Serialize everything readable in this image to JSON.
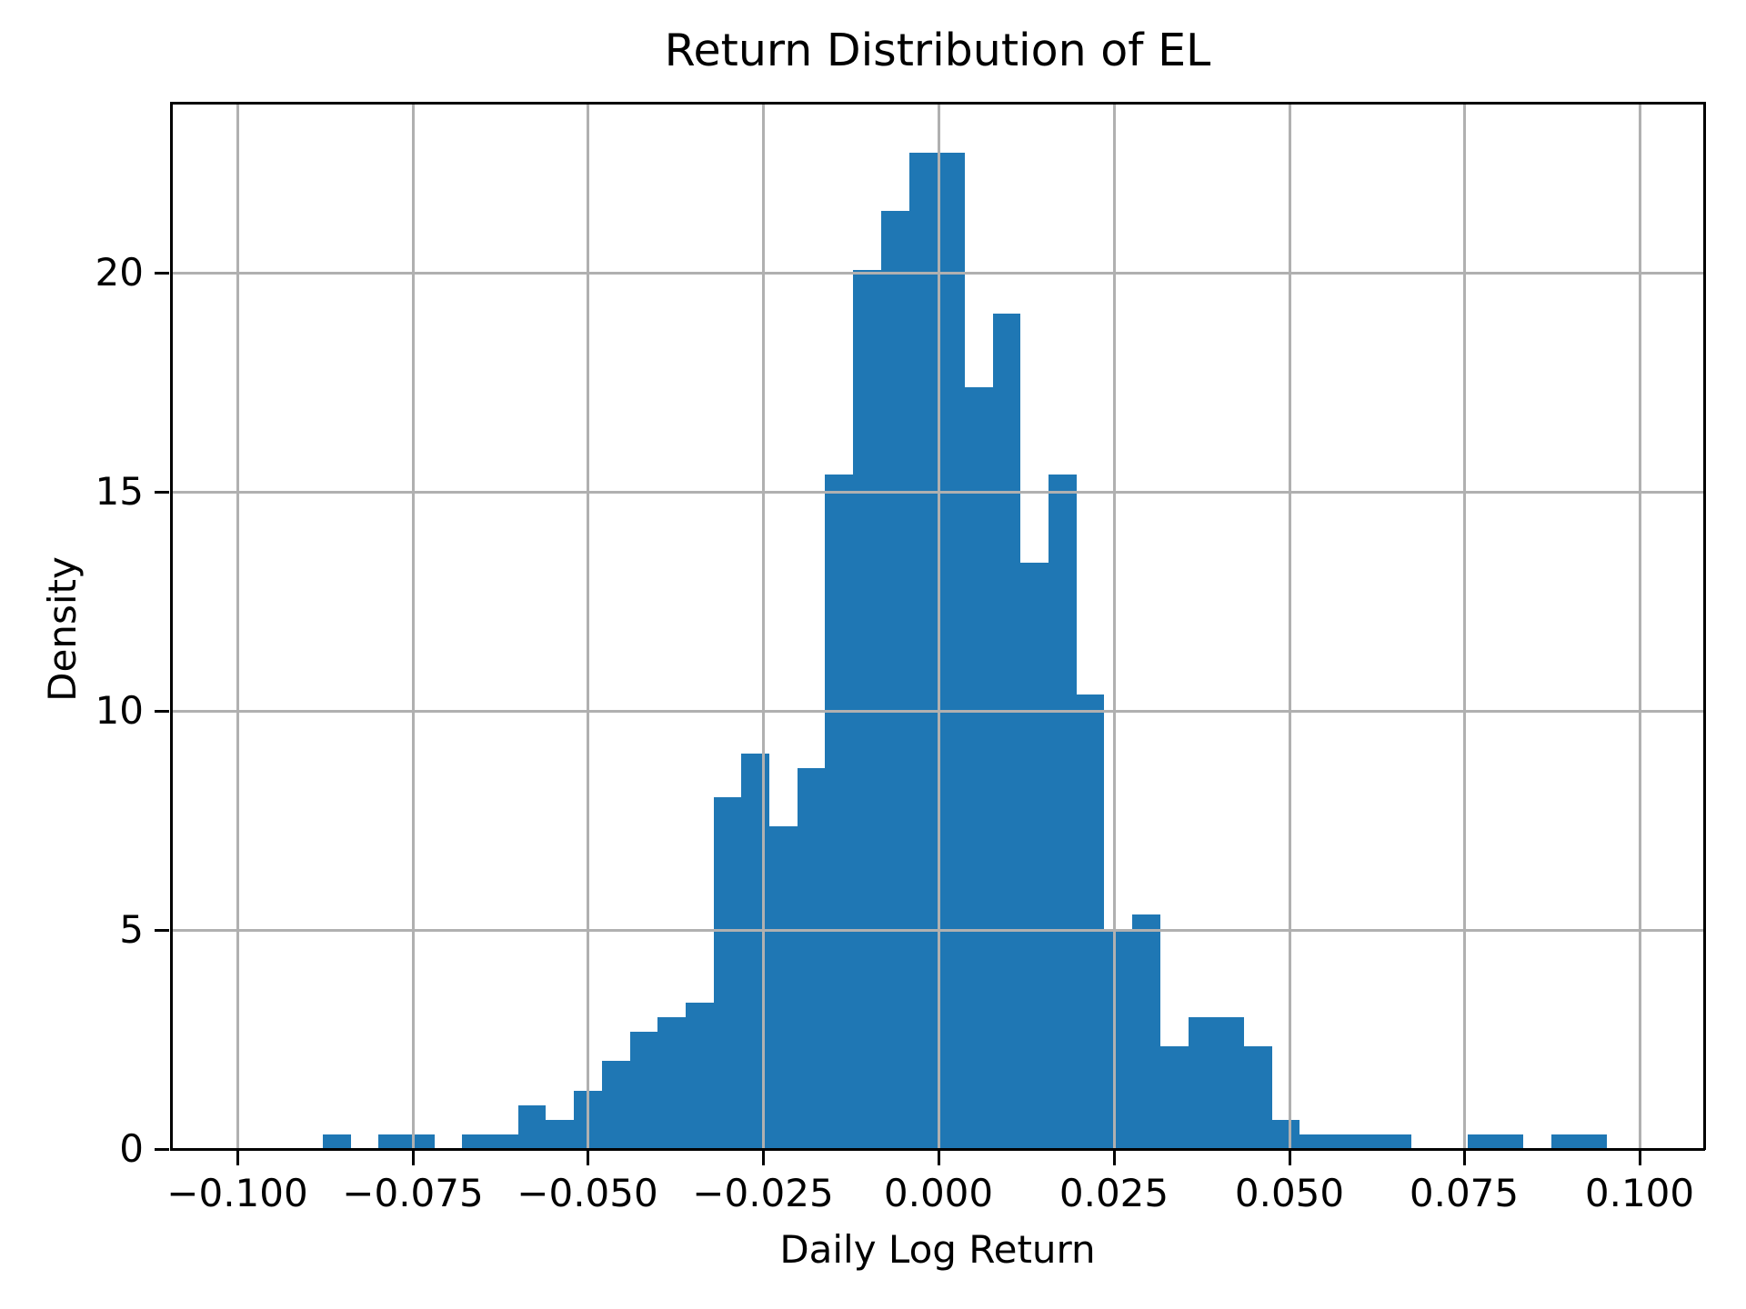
{
  "title": "Return Distribution of EL",
  "xlabel": "Daily Log Return",
  "ylabel": "Density",
  "chart_data": {
    "type": "bar",
    "subtype": "histogram",
    "title": "Return Distribution of EL",
    "xlabel": "Daily Log Return",
    "ylabel": "Density",
    "bar_color": "#1f77b4",
    "grid_color": "#b0b0b0",
    "grid": true,
    "legend": false,
    "xlim": [
      -0.10944,
      0.10919
    ],
    "ylim": [
      0,
      23.88
    ],
    "bin_start": -0.0878,
    "bin_width": 0.003981,
    "n_bins": 46,
    "n_observations": 751,
    "counts": [
      1,
      0,
      1,
      1,
      0,
      1,
      1,
      3,
      2,
      4,
      6,
      8,
      9,
      10,
      24,
      27,
      22,
      26,
      46,
      60,
      64,
      68,
      68,
      52,
      57,
      40,
      46,
      31,
      15,
      16,
      7,
      9,
      9,
      7,
      2,
      1,
      1,
      1,
      1,
      0,
      0,
      1,
      1,
      0,
      1,
      1
    ],
    "densities": [
      0.334,
      0,
      0.334,
      0.334,
      0,
      0.334,
      0.334,
      1.003,
      0.669,
      1.338,
      2.007,
      2.676,
      3.01,
      3.345,
      8.028,
      9.031,
      7.359,
      8.697,
      15.386,
      20.069,
      21.407,
      22.745,
      22.745,
      17.393,
      19.066,
      13.379,
      15.386,
      10.369,
      5.017,
      5.352,
      2.341,
      3.01,
      3.01,
      2.341,
      0.669,
      0.334,
      0.334,
      0.334,
      0.334,
      0,
      0,
      0.334,
      0.334,
      0,
      0.334,
      0.334
    ],
    "x_ticks": [
      {
        "value": -0.1,
        "label": "−0.100"
      },
      {
        "value": -0.075,
        "label": "−0.075"
      },
      {
        "value": -0.05,
        "label": "−0.050"
      },
      {
        "value": -0.025,
        "label": "−0.025"
      },
      {
        "value": 0.0,
        "label": "0.000"
      },
      {
        "value": 0.025,
        "label": "0.025"
      },
      {
        "value": 0.05,
        "label": "0.050"
      },
      {
        "value": 0.075,
        "label": "0.075"
      },
      {
        "value": 0.1,
        "label": "0.100"
      }
    ],
    "y_ticks": [
      {
        "value": 0,
        "label": "0"
      },
      {
        "value": 5,
        "label": "5"
      },
      {
        "value": 10,
        "label": "10"
      },
      {
        "value": 15,
        "label": "15"
      },
      {
        "value": 20,
        "label": "20"
      }
    ]
  }
}
